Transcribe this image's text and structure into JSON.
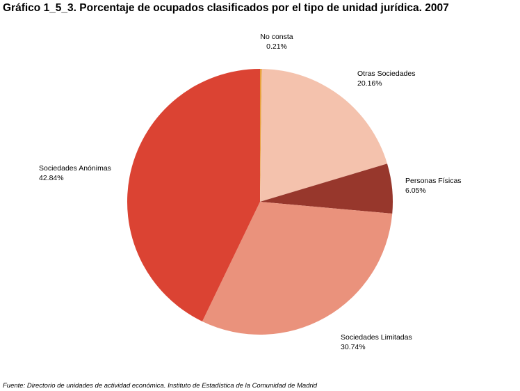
{
  "chart_data": {
    "type": "pie",
    "title": "Gráfico 1_5_3. Porcentaje de ocupados clasificados por el tipo de unidad jurídica. 2007",
    "source": "Fuente: Directorio de unidades de actividad económica. Instituto de Estadística de la Comunidad de Madrid",
    "start_angle_deg": 0,
    "direction": "clockwise",
    "slices": [
      {
        "name": "No consta",
        "value": 0.21,
        "value_label": "0.21%",
        "color": "#e8a23c"
      },
      {
        "name": "Otras Sociedades",
        "value": 20.16,
        "value_label": "20.16%",
        "color": "#f4c2ad"
      },
      {
        "name": "Personas Físicas",
        "value": 6.05,
        "value_label": "6.05%",
        "color": "#97372c"
      },
      {
        "name": "Sociedades Limitadas",
        "value": 30.74,
        "value_label": "30.74%",
        "color": "#ea927c"
      },
      {
        "name": "Sociedades Anónimas",
        "value": 42.84,
        "value_label": "42.84%",
        "color": "#db4333"
      }
    ]
  }
}
